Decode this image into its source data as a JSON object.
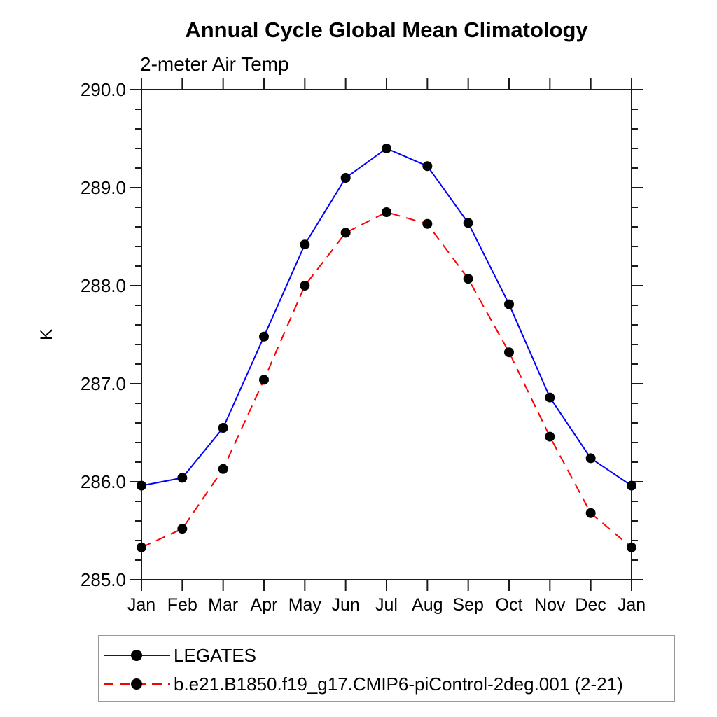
{
  "chart_data": {
    "type": "line",
    "title": "Annual Cycle Global Mean Climatology",
    "subtitle": "2-meter Air Temp",
    "ylabel": "K",
    "xlabel": "",
    "ylim": [
      285.0,
      290.0
    ],
    "ytick_interval": 1.0,
    "yminor_interval": 0.2,
    "ytick_labels": [
      "285.0",
      "286.0",
      "287.0",
      "288.0",
      "289.0",
      "290.0"
    ],
    "categories": [
      "Jan",
      "Feb",
      "Mar",
      "Apr",
      "May",
      "Jun",
      "Jul",
      "Aug",
      "Sep",
      "Oct",
      "Nov",
      "Dec",
      "Jan"
    ],
    "grid": false,
    "legend_position": "bottom-left-outside",
    "frame_color": "#1a1a1a",
    "marker_color": "#000000",
    "series": [
      {
        "name": "LEGATES",
        "color": "#0000ff",
        "line_style": "solid",
        "marker": "filled-circle",
        "values": [
          285.96,
          286.04,
          286.55,
          287.48,
          288.42,
          289.1,
          289.4,
          289.22,
          288.64,
          287.81,
          286.86,
          286.24,
          285.96
        ]
      },
      {
        "name": "b.e21.B1850.f19_g17.CMIP6-piControl-2deg.001 (2-21)",
        "color": "#ff0000",
        "line_style": "dashed",
        "marker": "filled-circle",
        "values": [
          285.33,
          285.52,
          286.13,
          287.04,
          288.0,
          288.54,
          288.75,
          288.63,
          288.07,
          287.32,
          286.46,
          285.68,
          285.33
        ]
      }
    ]
  }
}
